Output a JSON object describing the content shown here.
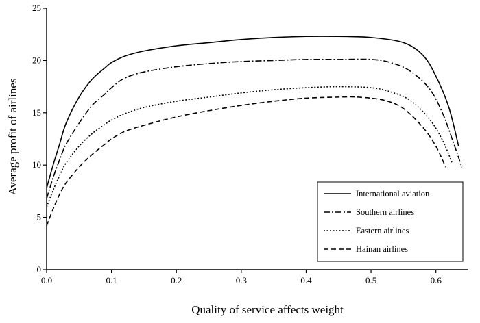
{
  "chart_data": {
    "type": "line",
    "xlabel": "Quality of service affects weight",
    "ylabel": "Average profit of airlines",
    "xlim": [
      0,
      0.65
    ],
    "ylim": [
      0,
      25
    ],
    "xticks": [
      0.0,
      0.1,
      0.2,
      0.3,
      0.4,
      0.5,
      0.6
    ],
    "xtick_labels": [
      "0.0",
      "0.1",
      "0.2",
      "0.3",
      "0.4",
      "0.5",
      "0.6"
    ],
    "yticks": [
      0,
      5,
      10,
      15,
      20,
      25
    ],
    "ytick_labels": [
      "0",
      "5",
      "10",
      "15",
      "20",
      "25"
    ],
    "grid": false,
    "legend_position": "bottom-right",
    "series": [
      {
        "name": "International aviation",
        "style": "solid",
        "x": [
          0.0,
          0.01,
          0.02,
          0.03,
          0.05,
          0.07,
          0.09,
          0.1,
          0.12,
          0.15,
          0.2,
          0.25,
          0.3,
          0.35,
          0.4,
          0.45,
          0.5,
          0.55,
          0.58,
          0.6,
          0.62,
          0.635
        ],
        "y": [
          7.8,
          10.0,
          12.0,
          14.0,
          16.5,
          18.2,
          19.3,
          19.8,
          20.4,
          20.9,
          21.4,
          21.7,
          22.0,
          22.2,
          22.3,
          22.3,
          22.2,
          21.7,
          20.5,
          18.5,
          15.5,
          11.8
        ]
      },
      {
        "name": "Southern airlines",
        "style": "dashdot",
        "x": [
          0.0,
          0.01,
          0.02,
          0.03,
          0.05,
          0.07,
          0.09,
          0.1,
          0.12,
          0.15,
          0.2,
          0.25,
          0.3,
          0.35,
          0.4,
          0.45,
          0.5,
          0.53,
          0.56,
          0.59,
          0.61,
          0.625,
          0.64
        ],
        "y": [
          6.8,
          8.8,
          10.5,
          12.0,
          14.0,
          15.7,
          16.8,
          17.4,
          18.3,
          18.9,
          19.4,
          19.7,
          19.9,
          20.0,
          20.1,
          20.1,
          20.1,
          19.8,
          19.0,
          17.3,
          15.0,
          12.5,
          9.8
        ]
      },
      {
        "name": "Eastern airlines",
        "style": "dotted",
        "x": [
          0.0,
          0.01,
          0.02,
          0.03,
          0.05,
          0.07,
          0.09,
          0.1,
          0.12,
          0.15,
          0.2,
          0.25,
          0.3,
          0.35,
          0.4,
          0.45,
          0.5,
          0.53,
          0.56,
          0.59,
          0.61,
          0.625
        ],
        "y": [
          6.0,
          7.6,
          9.0,
          10.2,
          11.8,
          13.0,
          13.9,
          14.3,
          14.9,
          15.5,
          16.1,
          16.5,
          16.9,
          17.2,
          17.4,
          17.5,
          17.4,
          17.0,
          16.2,
          14.4,
          12.4,
          10.2
        ]
      },
      {
        "name": "Hainan airlines",
        "style": "dashed",
        "x": [
          0.0,
          0.01,
          0.02,
          0.03,
          0.05,
          0.07,
          0.09,
          0.1,
          0.12,
          0.15,
          0.2,
          0.25,
          0.3,
          0.35,
          0.4,
          0.45,
          0.48,
          0.52,
          0.55,
          0.58,
          0.6,
          0.615
        ],
        "y": [
          4.2,
          5.8,
          7.2,
          8.3,
          9.8,
          11.0,
          12.0,
          12.5,
          13.2,
          13.8,
          14.6,
          15.2,
          15.7,
          16.1,
          16.4,
          16.5,
          16.5,
          16.2,
          15.4,
          13.6,
          11.8,
          9.8
        ]
      }
    ]
  }
}
